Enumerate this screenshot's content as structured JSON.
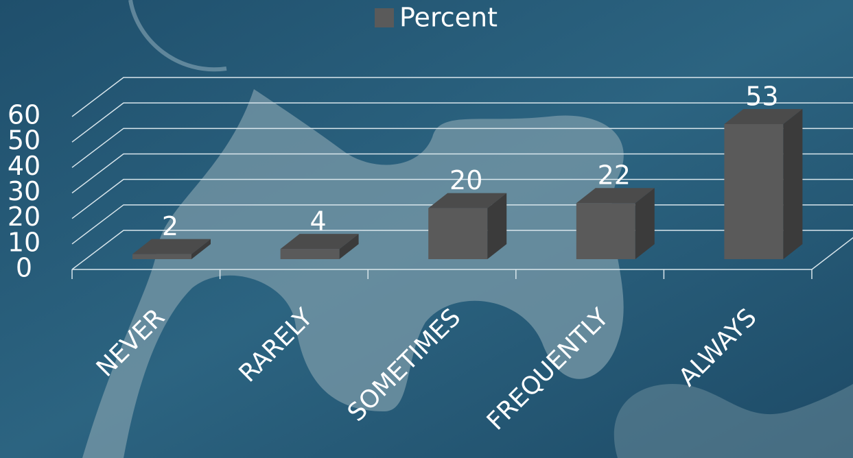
{
  "chart_data": {
    "type": "bar3d",
    "categories": [
      "NEVER",
      "RARELY",
      "SOMETIMES",
      "FREQUENTLY",
      "ALWAYS"
    ],
    "series": [
      {
        "name": "Percent",
        "color": "#5a5a5a",
        "values": [
          2,
          4,
          20,
          22,
          53
        ]
      }
    ],
    "ylim": [
      0,
      60
    ],
    "yticks": [
      0,
      10,
      20,
      30,
      40,
      50,
      60
    ],
    "grid": true,
    "legend": "top",
    "data_labels": true
  }
}
